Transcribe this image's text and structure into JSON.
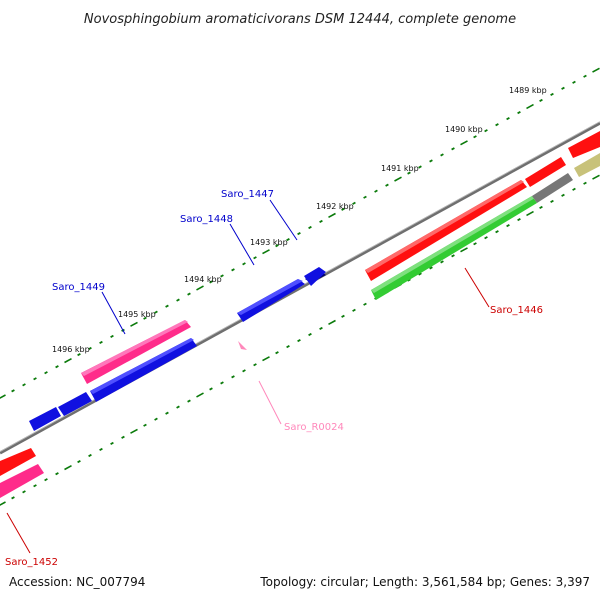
{
  "title": "Novosphingobium aromaticivorans DSM 12444, complete genome",
  "accession": "Accession: NC_007794",
  "topology": "Topology: circular; Length: 3,561,584 bp; Genes: 3,397",
  "scale_labels": [
    "1489 kbp",
    "1490 kbp",
    "1491 kbp",
    "1492 kbp",
    "1493 kbp",
    "1494 kbp",
    "1495 kbp",
    "1496 kbp"
  ],
  "gene_labels": {
    "saro_1447": "Saro_1447",
    "saro_1448": "Saro_1448",
    "saro_1449": "Saro_1449",
    "saro_1446": "Saro_1446",
    "saro_r0024": "Saro_R0024",
    "saro_1452": "Saro_1452"
  },
  "colors": {
    "forward_gene": "#1010e0",
    "trna": "#ff2b8a",
    "cds_red": "#ff1010",
    "cds_green": "#33cc33",
    "cds_gray": "#777777",
    "cds_olive": "#c8c27a",
    "rrna": "#ff88bb",
    "backbone": "#7a7a7a",
    "ticks": "#0a7a0a",
    "label_blue": "#0000cc",
    "label_red": "#cc0000",
    "label_pink": "#ff88bb"
  }
}
